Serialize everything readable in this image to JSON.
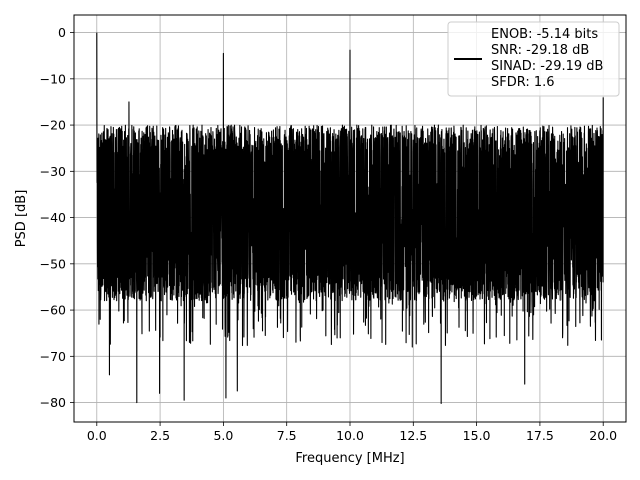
{
  "chart_data": {
    "type": "line",
    "xlabel": "Frequency [MHz]",
    "ylabel": "PSD [dB]",
    "xlim": [
      -0.9,
      20.9
    ],
    "ylim": [
      -84.2,
      3.8
    ],
    "xticks": [
      0.0,
      2.5,
      5.0,
      7.5,
      10.0,
      12.5,
      15.0,
      17.5,
      20.0
    ],
    "xtick_labels": [
      "0.0",
      "2.5",
      "5.0",
      "7.5",
      "10.0",
      "12.5",
      "15.0",
      "17.5",
      "20.0"
    ],
    "yticks": [
      0,
      -10,
      -20,
      -30,
      -40,
      -50,
      -60,
      -70,
      -80
    ],
    "ytick_labels": [
      "0",
      "−10",
      "−20",
      "−30",
      "−40",
      "−50",
      "−60",
      "−70",
      "−80"
    ],
    "grid": true,
    "legend_position": "top-right",
    "legend_lines": [
      "ENOB: -5.14 bits",
      "SNR: -29.18 dB",
      "SINAD: -29.19 dB",
      "SFDR: 1.6"
    ],
    "series": [
      {
        "color": "#000000",
        "x_range": [
          0,
          20
        ],
        "noise_floor_top": -20,
        "noise_floor_bottom": -58,
        "noise_floor_mean": -40,
        "peaks": [
          {
            "x": 0.0,
            "y": 0.0
          },
          {
            "x": 1.27,
            "y": -15.0
          },
          {
            "x": 5.0,
            "y": -4.5
          },
          {
            "x": 10.0,
            "y": -3.8
          },
          {
            "x": 20.0,
            "y": -14.0
          }
        ],
        "minima": [
          {
            "x": 1.58,
            "y": -80.0
          },
          {
            "x": 3.45,
            "y": -79.5
          },
          {
            "x": 5.1,
            "y": -79.0
          },
          {
            "x": 13.6,
            "y": -80.2
          },
          {
            "x": 2.48,
            "y": -78.0
          },
          {
            "x": 5.55,
            "y": -77.5
          },
          {
            "x": 0.5,
            "y": -74.0
          },
          {
            "x": 16.9,
            "y": -76.0
          }
        ]
      }
    ]
  }
}
